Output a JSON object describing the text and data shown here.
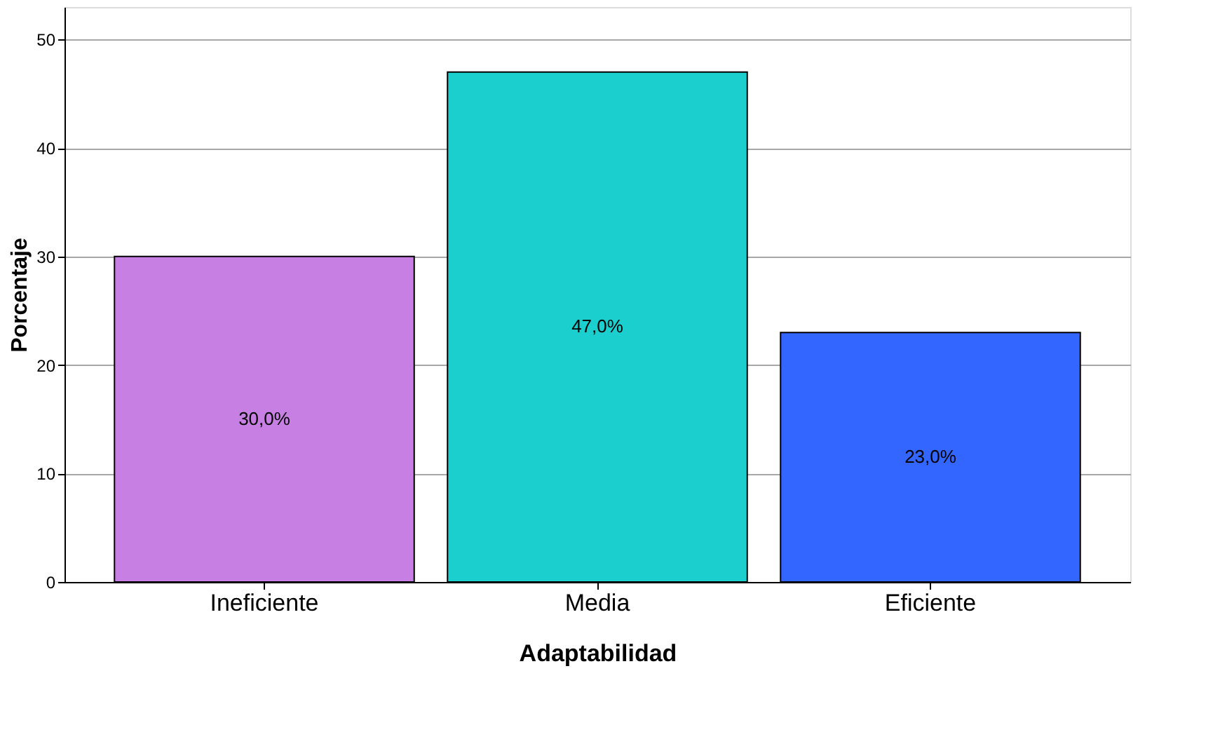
{
  "chart_data": {
    "type": "bar",
    "xlabel": "Adaptabilidad",
    "ylabel": "Porcentaje",
    "categories": [
      "Ineficiente",
      "Media",
      "Eficiente"
    ],
    "values": [
      30,
      47,
      23
    ],
    "colors": [
      "#c77fe3",
      "#1ccfcf",
      "#3366ff"
    ],
    "value_labels": [
      "30,0%",
      "47,0%",
      "23,0%"
    ],
    "ylim": [
      0,
      53
    ],
    "yticks": [
      0,
      10,
      20,
      30,
      40,
      50
    ],
    "grid": "y"
  }
}
